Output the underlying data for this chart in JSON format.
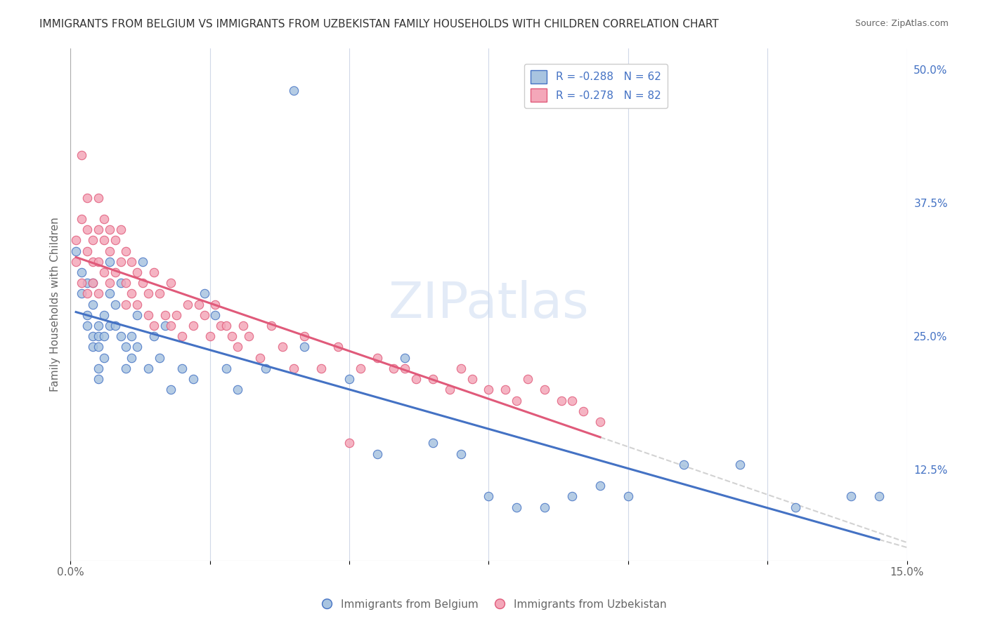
{
  "title": "IMMIGRANTS FROM BELGIUM VS IMMIGRANTS FROM UZBEKISTAN FAMILY HOUSEHOLDS WITH CHILDREN CORRELATION CHART",
  "source": "Source: ZipAtlas.com",
  "xlabel_bottom": "",
  "ylabel": "Family Households with Children",
  "x_label_bottom_left": "0.0%",
  "x_label_bottom_right": "15.0%",
  "y_right_labels": [
    "50.0%",
    "37.5%",
    "25.0%",
    "12.5%"
  ],
  "legend_belgium": "R = -0.288   N = 62",
  "legend_uzbekistan": "R = -0.278   N = 82",
  "color_belgium": "#a8c4e0",
  "color_uzbekistan": "#f4a7b9",
  "line_belgium": "#4472c4",
  "line_uzbekistan": "#e05a7a",
  "line_dashed": "#c0c0c0",
  "watermark": "ZIPatlas",
  "xlim": [
    0.0,
    0.15
  ],
  "ylim": [
    0.04,
    0.52
  ],
  "belgium_scatter_x": [
    0.001,
    0.002,
    0.002,
    0.003,
    0.003,
    0.003,
    0.004,
    0.004,
    0.004,
    0.004,
    0.005,
    0.005,
    0.005,
    0.005,
    0.005,
    0.006,
    0.006,
    0.006,
    0.007,
    0.007,
    0.007,
    0.008,
    0.008,
    0.009,
    0.009,
    0.01,
    0.01,
    0.011,
    0.011,
    0.012,
    0.012,
    0.013,
    0.014,
    0.015,
    0.016,
    0.017,
    0.018,
    0.02,
    0.022,
    0.024,
    0.026,
    0.028,
    0.03,
    0.035,
    0.04,
    0.042,
    0.05,
    0.055,
    0.06,
    0.065,
    0.07,
    0.075,
    0.08,
    0.085,
    0.09,
    0.095,
    0.1,
    0.11,
    0.12,
    0.13,
    0.14,
    0.145
  ],
  "belgium_scatter_y": [
    0.33,
    0.31,
    0.29,
    0.3,
    0.27,
    0.26,
    0.25,
    0.28,
    0.3,
    0.24,
    0.26,
    0.25,
    0.24,
    0.22,
    0.21,
    0.25,
    0.27,
    0.23,
    0.29,
    0.32,
    0.26,
    0.28,
    0.26,
    0.3,
    0.25,
    0.24,
    0.22,
    0.25,
    0.23,
    0.27,
    0.24,
    0.32,
    0.22,
    0.25,
    0.23,
    0.26,
    0.2,
    0.22,
    0.21,
    0.29,
    0.27,
    0.22,
    0.2,
    0.22,
    0.48,
    0.24,
    0.21,
    0.14,
    0.23,
    0.15,
    0.14,
    0.1,
    0.09,
    0.09,
    0.1,
    0.11,
    0.1,
    0.13,
    0.13,
    0.09,
    0.1,
    0.1
  ],
  "uzbekistan_scatter_x": [
    0.001,
    0.001,
    0.002,
    0.002,
    0.002,
    0.003,
    0.003,
    0.003,
    0.003,
    0.004,
    0.004,
    0.004,
    0.005,
    0.005,
    0.005,
    0.005,
    0.006,
    0.006,
    0.006,
    0.007,
    0.007,
    0.007,
    0.008,
    0.008,
    0.009,
    0.009,
    0.01,
    0.01,
    0.01,
    0.011,
    0.011,
    0.012,
    0.012,
    0.013,
    0.014,
    0.014,
    0.015,
    0.015,
    0.016,
    0.017,
    0.018,
    0.018,
    0.019,
    0.02,
    0.021,
    0.022,
    0.023,
    0.024,
    0.025,
    0.026,
    0.027,
    0.028,
    0.029,
    0.03,
    0.031,
    0.032,
    0.034,
    0.036,
    0.038,
    0.04,
    0.042,
    0.045,
    0.048,
    0.05,
    0.052,
    0.055,
    0.058,
    0.06,
    0.062,
    0.065,
    0.068,
    0.07,
    0.072,
    0.075,
    0.078,
    0.08,
    0.082,
    0.085,
    0.088,
    0.09,
    0.092,
    0.095
  ],
  "uzbekistan_scatter_y": [
    0.34,
    0.32,
    0.42,
    0.36,
    0.3,
    0.38,
    0.35,
    0.33,
    0.29,
    0.34,
    0.32,
    0.3,
    0.38,
    0.35,
    0.32,
    0.29,
    0.36,
    0.34,
    0.31,
    0.35,
    0.33,
    0.3,
    0.34,
    0.31,
    0.35,
    0.32,
    0.33,
    0.3,
    0.28,
    0.32,
    0.29,
    0.31,
    0.28,
    0.3,
    0.29,
    0.27,
    0.31,
    0.26,
    0.29,
    0.27,
    0.3,
    0.26,
    0.27,
    0.25,
    0.28,
    0.26,
    0.28,
    0.27,
    0.25,
    0.28,
    0.26,
    0.26,
    0.25,
    0.24,
    0.26,
    0.25,
    0.23,
    0.26,
    0.24,
    0.22,
    0.25,
    0.22,
    0.24,
    0.15,
    0.22,
    0.23,
    0.22,
    0.22,
    0.21,
    0.21,
    0.2,
    0.22,
    0.21,
    0.2,
    0.2,
    0.19,
    0.21,
    0.2,
    0.19,
    0.19,
    0.18,
    0.17
  ],
  "background_color": "#ffffff",
  "grid_color": "#d0d8e8"
}
